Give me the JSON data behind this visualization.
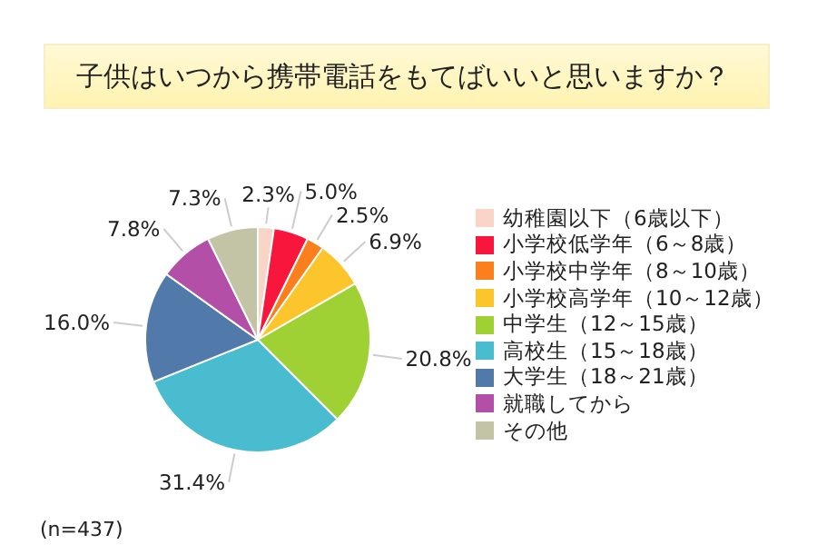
{
  "chart_data": {
    "type": "pie",
    "title": "子供はいつから携帯電話をもてばいいと思いますか？",
    "categories": [
      "幼稚園以下（6歳以下）",
      "小学校低学年（6～8歳）",
      "小学校中学年（8～10歳）",
      "小学校高学年（10～12歳）",
      "中学生（12～15歳）",
      "高校生（15～18歳）",
      "大学生（18～21歳）",
      "就職してから",
      "その他"
    ],
    "values": [
      2.3,
      5.0,
      2.5,
      6.9,
      20.8,
      31.4,
      16.0,
      7.8,
      7.3
    ],
    "value_labels": [
      "2.3%",
      "5.0%",
      "2.5%",
      "6.9%",
      "20.8%",
      "31.4%",
      "16.0%",
      "7.8%",
      "7.3%"
    ],
    "colors": [
      "#f8d5c6",
      "#f8163c",
      "#fb7f1c",
      "#fdc52c",
      "#9fd034",
      "#49bcd0",
      "#5179a9",
      "#b44fa7",
      "#c3c3a5"
    ],
    "legend": "right",
    "annotations": [
      "(n=437)"
    ]
  }
}
